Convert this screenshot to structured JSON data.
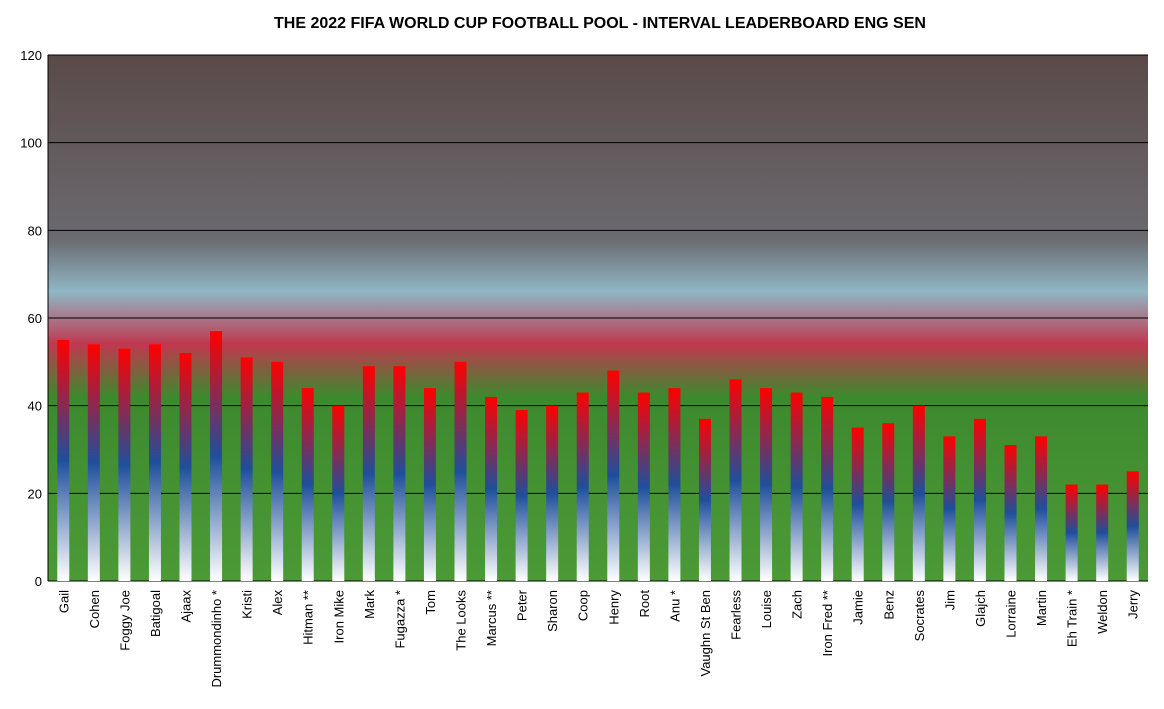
{
  "chart_data": {
    "type": "bar",
    "title": "THE 2022 FIFA WORLD CUP FOOTBALL POOL - INTERVAL LEADERBOARD ENG SEN",
    "categories": [
      "Gail",
      "Cohen",
      "Foggy Joe",
      "Batigoal",
      "Ajaax",
      "Drummondinho *",
      "Kristi",
      "Alex",
      "Hitman **",
      "Iron Mike",
      "Mark",
      "Fugazza *",
      "Tom",
      "The Looks",
      "Marcus **",
      "Peter",
      "Sharon",
      "Coop",
      "Henry",
      "Root",
      "Anu *",
      "Vaughn St Ben",
      "Fearless",
      "Louise",
      "Zach",
      "Iron Fred **",
      "Jamie",
      "Benz",
      "Socrates",
      "Jim",
      "Glajch",
      "Lorraine",
      "Martin",
      "Eh Train *",
      "Weldon",
      "Jerry"
    ],
    "values": [
      55,
      54,
      53,
      54,
      52,
      57,
      51,
      50,
      44,
      40,
      49,
      49,
      44,
      50,
      42,
      39,
      40,
      43,
      48,
      43,
      44,
      37,
      46,
      44,
      43,
      42,
      35,
      36,
      40,
      33,
      37,
      31,
      33,
      22,
      22,
      25
    ],
    "colors": [
      "#ff0000",
      "#1f4f9a",
      "#ffffff"
    ],
    "ylim": [
      0,
      120
    ],
    "yticks": [
      0,
      20,
      40,
      60,
      80,
      100,
      120
    ],
    "grid": true
  }
}
